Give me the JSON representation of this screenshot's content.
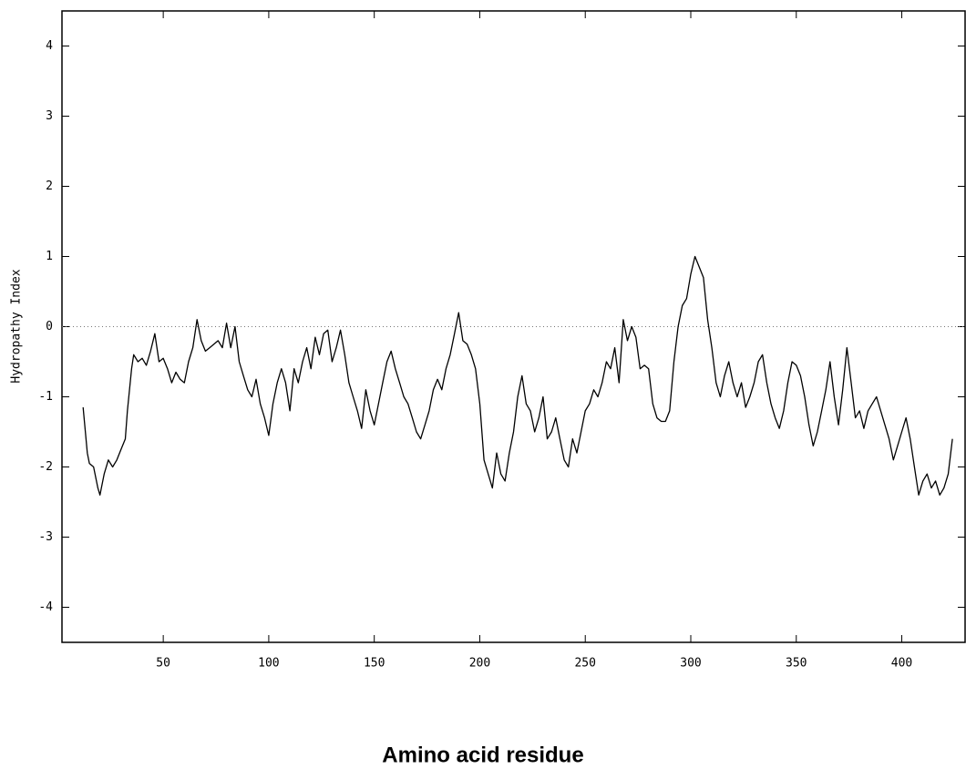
{
  "chart_data": {
    "type": "line",
    "ylabel": "Hydropathy Index",
    "xlabel": "Amino acid residue",
    "xlim": [
      2,
      430
    ],
    "ylim": [
      -4.5,
      4.5
    ],
    "xticks": [
      50,
      100,
      150,
      200,
      250,
      300,
      350,
      400
    ],
    "yticks": [
      -4,
      -3,
      -2,
      -1,
      0,
      1,
      2,
      3,
      4
    ],
    "reference_line": 0,
    "color": "#000000",
    "x": [
      12,
      14,
      15,
      17,
      19,
      20,
      22,
      24,
      26,
      28,
      30,
      32,
      33,
      35,
      36,
      38,
      40,
      42,
      44,
      46,
      48,
      50,
      52,
      54,
      56,
      58,
      60,
      62,
      64,
      66,
      68,
      70,
      72,
      74,
      76,
      78,
      80,
      82,
      84,
      86,
      88,
      90,
      92,
      94,
      96,
      98,
      100,
      102,
      104,
      106,
      108,
      110,
      112,
      114,
      116,
      118,
      120,
      122,
      124,
      126,
      128,
      130,
      132,
      134,
      136,
      138,
      140,
      142,
      144,
      146,
      148,
      150,
      152,
      154,
      156,
      158,
      160,
      162,
      164,
      166,
      168,
      170,
      172,
      174,
      176,
      178,
      180,
      182,
      184,
      186,
      188,
      190,
      192,
      194,
      196,
      198,
      200,
      202,
      204,
      206,
      208,
      210,
      212,
      214,
      216,
      218,
      220,
      222,
      224,
      226,
      228,
      230,
      232,
      234,
      236,
      238,
      240,
      242,
      244,
      246,
      248,
      250,
      252,
      254,
      256,
      258,
      260,
      262,
      264,
      266,
      268,
      270,
      272,
      274,
      276,
      278,
      280,
      282,
      284,
      286,
      288,
      290,
      292,
      294,
      296,
      298,
      300,
      302,
      304,
      306,
      308,
      310,
      312,
      314,
      316,
      318,
      320,
      322,
      324,
      326,
      328,
      330,
      332,
      334,
      336,
      338,
      340,
      342,
      344,
      346,
      348,
      350,
      352,
      354,
      356,
      358,
      360,
      362,
      364,
      366,
      368,
      370,
      372,
      374,
      376,
      378,
      380,
      382,
      384,
      386,
      388,
      390,
      392,
      394,
      396,
      398,
      400,
      402,
      404,
      406,
      408,
      410,
      412,
      414,
      416,
      418,
      420,
      422,
      424
    ],
    "values": [
      -1.15,
      -1.8,
      -1.95,
      -2.0,
      -2.3,
      -2.4,
      -2.1,
      -1.9,
      -2.0,
      -1.9,
      -1.75,
      -1.6,
      -1.2,
      -0.6,
      -0.4,
      -0.5,
      -0.45,
      -0.55,
      -0.35,
      -0.1,
      -0.5,
      -0.45,
      -0.6,
      -0.8,
      -0.65,
      -0.75,
      -0.8,
      -0.5,
      -0.3,
      0.1,
      -0.2,
      -0.35,
      -0.3,
      -0.25,
      -0.2,
      -0.3,
      0.05,
      -0.3,
      0.0,
      -0.5,
      -0.7,
      -0.9,
      -1.0,
      -0.75,
      -1.1,
      -1.3,
      -1.55,
      -1.1,
      -0.8,
      -0.6,
      -0.8,
      -1.2,
      -0.6,
      -0.8,
      -0.5,
      -0.3,
      -0.6,
      -0.15,
      -0.4,
      -0.1,
      -0.05,
      -0.5,
      -0.3,
      -0.05,
      -0.4,
      -0.8,
      -1.0,
      -1.2,
      -1.45,
      -0.9,
      -1.2,
      -1.4,
      -1.1,
      -0.8,
      -0.5,
      -0.35,
      -0.6,
      -0.8,
      -1.0,
      -1.1,
      -1.3,
      -1.5,
      -1.6,
      -1.4,
      -1.2,
      -0.9,
      -0.75,
      -0.9,
      -0.6,
      -0.4,
      -0.1,
      0.2,
      -0.2,
      -0.25,
      -0.4,
      -0.6,
      -1.1,
      -1.9,
      -2.1,
      -2.3,
      -1.8,
      -2.1,
      -2.2,
      -1.8,
      -1.5,
      -1.0,
      -0.7,
      -1.1,
      -1.2,
      -1.5,
      -1.3,
      -1.0,
      -1.6,
      -1.5,
      -1.3,
      -1.6,
      -1.9,
      -2.0,
      -1.6,
      -1.8,
      -1.5,
      -1.2,
      -1.1,
      -0.9,
      -1.0,
      -0.8,
      -0.5,
      -0.6,
      -0.3,
      -0.8,
      0.1,
      -0.2,
      0.0,
      -0.15,
      -0.6,
      -0.55,
      -0.6,
      -1.1,
      -1.3,
      -1.35,
      -1.35,
      -1.2,
      -0.5,
      0.0,
      0.3,
      0.4,
      0.75,
      1.0,
      0.85,
      0.7,
      0.1,
      -0.3,
      -0.8,
      -1.0,
      -0.7,
      -0.5,
      -0.8,
      -1.0,
      -0.8,
      -1.15,
      -1.0,
      -0.8,
      -0.5,
      -0.4,
      -0.8,
      -1.1,
      -1.3,
      -1.45,
      -1.2,
      -0.8,
      -0.5,
      -0.55,
      -0.7,
      -1.0,
      -1.4,
      -1.7,
      -1.5,
      -1.2,
      -0.9,
      -0.5,
      -1.0,
      -1.4,
      -0.9,
      -0.3,
      -0.8,
      -1.3,
      -1.2,
      -1.45,
      -1.2,
      -1.1,
      -1.0,
      -1.2,
      -1.4,
      -1.6,
      -1.9,
      -1.7,
      -1.5,
      -1.3,
      -1.6,
      -2.0,
      -2.4,
      -2.2,
      -2.1,
      -2.3,
      -2.2,
      -2.4,
      -2.3,
      -2.1,
      -1.6
    ]
  }
}
